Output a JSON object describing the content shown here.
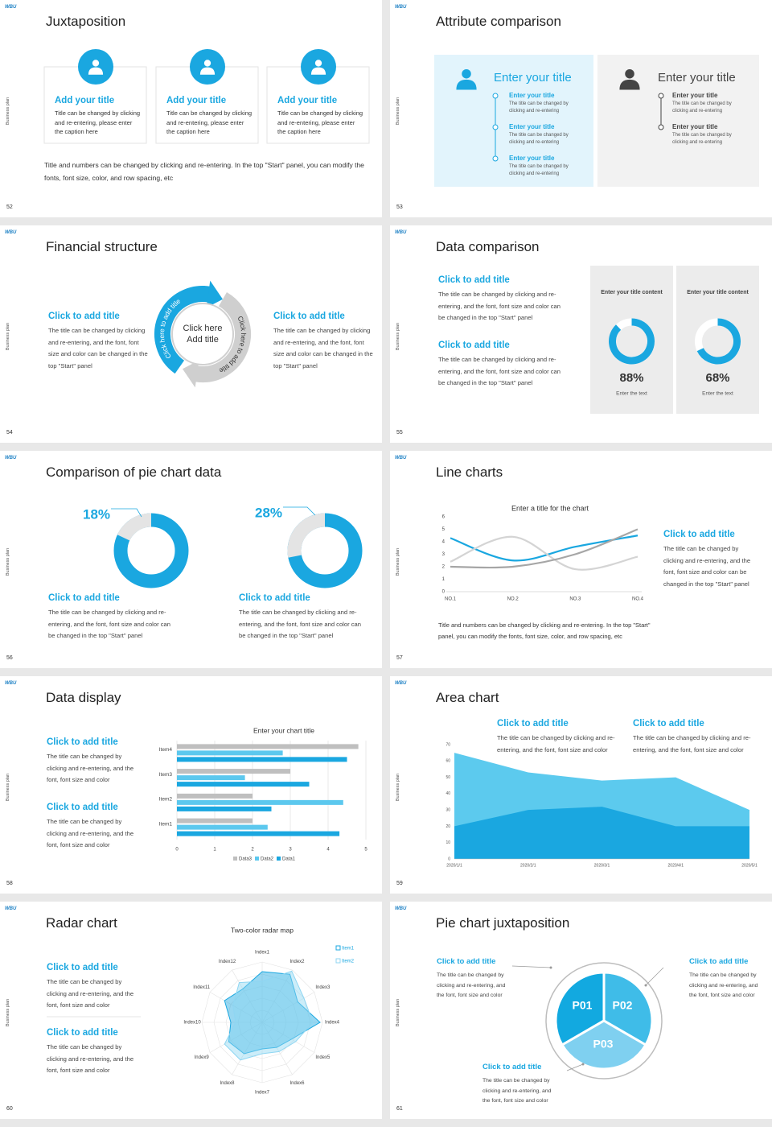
{
  "brand": "WBU",
  "side_label": "Business plan",
  "slides": [
    {
      "number": "52",
      "title": "Juxtaposition",
      "cards": [
        {
          "title": "Add your title",
          "text": "Title can be changed by clicking and re-entering, please enter the caption here"
        },
        {
          "title": "Add your title",
          "text": "Title can be changed by clicking and re-entering, please enter the caption here"
        },
        {
          "title": "Add your title",
          "text": "Title can be changed by clicking and re-entering, please enter the caption here"
        }
      ],
      "footer": "Title and numbers can be changed by clicking and re-entering. In the top \"Start\" panel, you can modify the fonts, font size, color, and row spacing, etc"
    },
    {
      "number": "53",
      "title": "Attribute comparison",
      "panels": [
        {
          "title": "Enter your title",
          "items": [
            {
              "title": "Enter your title",
              "text": "The title can be changed by clicking and re-entering"
            },
            {
              "title": "Enter your title",
              "text": "The title can be changed by clicking and re-entering"
            },
            {
              "title": "Enter your title",
              "text": "The title can be changed by clicking and re-entering"
            }
          ]
        },
        {
          "title": "Enter your title",
          "items": [
            {
              "title": "Enter your title",
              "text": "The title can be changed by clicking and re-entering"
            },
            {
              "title": "Enter your title",
              "text": "The title can be changed by clicking and re-entering"
            }
          ]
        }
      ]
    },
    {
      "number": "54",
      "title": "Financial structure",
      "blocks": [
        {
          "title": "Click to add title",
          "text": "The title can be changed by clicking and re-entering, and the font, font size and color can be changed in the top \"Start\" panel"
        },
        {
          "title": "Click to add title",
          "text": "The title can be changed by clicking and re-entering, and the font, font size and color can be changed in the top \"Start\" panel"
        }
      ],
      "center": [
        "Click here",
        "Add title"
      ],
      "arc_labels": [
        "Click here to add title",
        "Click here to add title"
      ]
    },
    {
      "number": "55",
      "title": "Data comparison",
      "blocks": [
        {
          "title": "Click to add title",
          "text": "The title can be changed by clicking and re-entering, and the font, font size and color can be changed in the top \"Start\" panel"
        },
        {
          "title": "Click to add title",
          "text": "The title can be changed by clicking and re-entering, and the font, font size and color can be changed in the top \"Start\" panel"
        }
      ],
      "cards": [
        {
          "title": "Enter your title content",
          "caption": "Enter the text"
        },
        {
          "title": "Enter your title content",
          "caption": "Enter the text"
        }
      ]
    },
    {
      "number": "56",
      "title": "Comparison of pie chart data",
      "blocks": [
        {
          "title": "Click to add title",
          "text": "The title can be changed by clicking and re-entering, and the font, font size and color can be changed in the top \"Start\" panel"
        },
        {
          "title": "Click to add title",
          "text": "The title can be changed by clicking and re-entering, and the font, font size and color can be changed in the top \"Start\" panel"
        }
      ]
    },
    {
      "number": "57",
      "title": "Line charts",
      "block": {
        "title": "Click to add title",
        "text": "The title can be changed by clicking and re-entering, and the font, font size and color can be changed in the top \"Start\" panel"
      },
      "footer": "Title and numbers can be changed by clicking and re-entering. In the top \"Start\" panel, you can modify the fonts, font size, color, and row spacing, etc"
    },
    {
      "number": "58",
      "title": "Data display",
      "blocks": [
        {
          "title": "Click to add title",
          "text": "The title can be changed by clicking and re-entering, and the font, font size and color"
        },
        {
          "title": "Click to add title",
          "text": "The title can be changed by clicking and re-entering, and the font, font size and color"
        }
      ]
    },
    {
      "number": "59",
      "title": "Area chart",
      "blocks": [
        {
          "title": "Click to add title",
          "text": "The title can be changed by clicking and re-entering, and the font, font size and color"
        },
        {
          "title": "Click to add title",
          "text": "The title can be changed by clicking and re-entering, and the font, font size and color"
        }
      ]
    },
    {
      "number": "60",
      "title": "Radar chart",
      "blocks": [
        {
          "title": "Click to add title",
          "text": "The title can be changed by clicking and re-entering, and the font, font size and color"
        },
        {
          "title": "Click to add title",
          "text": "The title can be changed by clicking and re-entering, and the font, font size and color"
        }
      ]
    },
    {
      "number": "61",
      "title": "Pie chart juxtaposition",
      "blocks": [
        {
          "title": "Click to add title",
          "text": "The title can be changed by clicking and re-entering, and the font, font size and color"
        },
        {
          "title": "Click to add title",
          "text": "The title can be changed by clicking and re-entering, and the font, font size and color"
        },
        {
          "title": "Click to add title",
          "text": "The title can be changed by clicking and re-entering, and the font, font size and color"
        }
      ],
      "segments": [
        "P01",
        "P02",
        "P03"
      ]
    }
  ],
  "chart_data": [
    {
      "type": "donut",
      "values": [
        88,
        68
      ],
      "value_labels": [
        "88%",
        "68%"
      ],
      "ylim": [
        0,
        100
      ],
      "direction": "clockwise",
      "value_color": "#1aa7e0",
      "rest_color": "#ffffff"
    },
    {
      "type": "donut",
      "values": [
        18,
        28
      ],
      "value_labels": [
        "18%",
        "28%"
      ],
      "ylim": [
        0,
        100
      ],
      "direction": "counterclockwise",
      "value_color": "#e4e4e4",
      "rest_color": "#1aa7e0"
    },
    {
      "type": "line",
      "title": "Enter a title for the chart",
      "categories": [
        "NO.1",
        "NO.2",
        "NO.3",
        "NO.4"
      ],
      "series": [
        {
          "color": "#1aa7e0",
          "values": [
            4.3,
            2.5,
            3.6,
            4.5
          ]
        },
        {
          "color": "#d4d4d4",
          "values": [
            2.4,
            4.4,
            1.8,
            2.8
          ]
        },
        {
          "color": "#a6a6a6",
          "values": [
            2,
            2,
            3,
            5
          ]
        }
      ],
      "ylim": [
        0,
        6
      ],
      "yticks": [
        0,
        1,
        2,
        3,
        4,
        5,
        6
      ],
      "smooth": true
    },
    {
      "type": "hbar",
      "title": "Enter your chart title",
      "categories": [
        "Item1",
        "Item2",
        "Item3",
        "Item4"
      ],
      "series": [
        {
          "name": "Data1",
          "color": "#1aa7e0",
          "values": [
            4.3,
            2.5,
            3.5,
            4.5
          ]
        },
        {
          "name": "Data2",
          "color": "#5cc8ee",
          "values": [
            2.4,
            4.4,
            1.8,
            2.8
          ]
        },
        {
          "name": "Data3",
          "color": "#bfbfbf",
          "values": [
            2,
            2,
            3,
            4.8
          ]
        }
      ],
      "xlim": [
        0,
        5
      ],
      "xticks": [
        0,
        1,
        2,
        3,
        4,
        5
      ],
      "grid": true,
      "legend": "bottom"
    },
    {
      "type": "area",
      "categories": [
        "2020/1/1",
        "2020/2/1",
        "2020/3/1",
        "2020/4/1",
        "2020/5/1"
      ],
      "series": [
        {
          "color": "#5ccaee",
          "values": [
            65,
            53,
            48,
            50,
            30
          ]
        },
        {
          "color": "#1aa7e0",
          "values": [
            20,
            30,
            32,
            20,
            20
          ]
        }
      ],
      "ylim": [
        0,
        70
      ],
      "yticks": [
        0,
        10,
        20,
        30,
        40,
        50,
        60,
        70
      ]
    },
    {
      "type": "radar",
      "title": "Two-color radar map",
      "categories": [
        "Index1",
        "Index2",
        "Index3",
        "Index4",
        "Index5",
        "Index6",
        "Index7",
        "Index8",
        "Index9",
        "Index10",
        "Index11",
        "Index12"
      ],
      "series": [
        {
          "name": "Item1",
          "color": "#1aa7e0",
          "values": [
            4.2,
            4.6,
            3.4,
            4.8,
            2.8,
            2.4,
            2.2,
            3.0,
            3.2,
            2.6,
            3.6,
            3.2
          ]
        },
        {
          "name": "Item2",
          "color": "#8fd6f2",
          "values": [
            3.4,
            4.9,
            4.0,
            4.2,
            3.2,
            2.8,
            2.6,
            3.6,
            3.6,
            2.2,
            2.8,
            3.8
          ]
        }
      ],
      "rlim": [
        0,
        5
      ],
      "legend": "top-right"
    }
  ]
}
